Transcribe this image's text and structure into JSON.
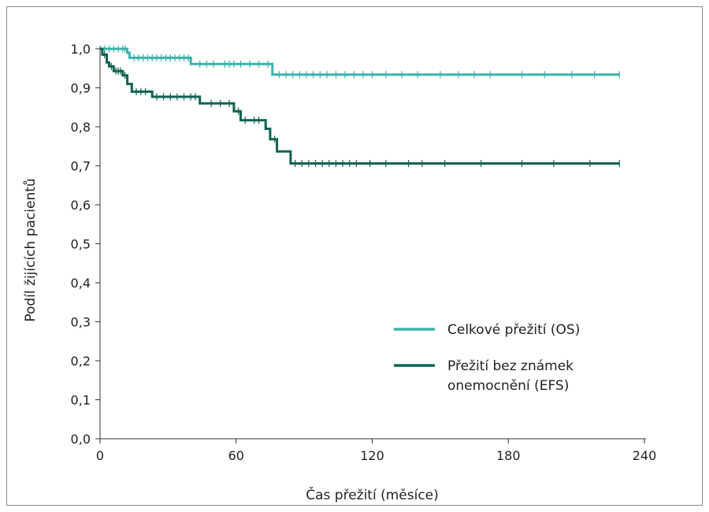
{
  "chart_data": {
    "type": "line",
    "xlabel": "Čas přežití (měsíce)",
    "ylabel": "Podíl žijících pacientů",
    "xlim": [
      0,
      240
    ],
    "ylim": [
      0,
      1
    ],
    "x_ticks": [
      0,
      60,
      120,
      180,
      240
    ],
    "x_tick_labels": [
      "0",
      "60",
      "120",
      "180",
      "240"
    ],
    "y_ticks": [
      0,
      0.1,
      0.2,
      0.3,
      0.4,
      0.5,
      0.6,
      0.7,
      0.8,
      0.9,
      1.0
    ],
    "y_tick_labels": [
      "0,0",
      "0,1",
      "0,2",
      "0,3",
      "0,4",
      "0,5",
      "0,6",
      "0,7",
      "0,8",
      "0,9",
      "1,0"
    ],
    "grid": false,
    "legend_position": "bottom-right",
    "series": [
      {
        "name": "Celkové přežití (OS)",
        "color": "#3ab3ad",
        "step_points": [
          [
            0,
            1.0
          ],
          [
            12,
            1.0
          ],
          [
            12,
            0.99
          ],
          [
            13,
            0.99
          ],
          [
            13,
            0.977
          ],
          [
            40,
            0.977
          ],
          [
            40,
            0.961
          ],
          [
            76,
            0.961
          ],
          [
            76,
            0.934
          ],
          [
            229,
            0.934
          ]
        ],
        "censor_x": [
          2,
          4,
          6,
          8,
          10,
          11,
          15,
          17,
          19,
          21,
          23,
          25,
          27,
          29,
          31,
          33,
          35,
          37,
          39,
          44,
          47,
          50,
          55,
          57,
          59,
          62,
          66,
          70,
          74,
          79,
          82,
          85,
          88,
          91,
          94,
          97,
          100,
          104,
          108,
          112,
          116,
          120,
          126,
          133,
          140,
          150,
          158,
          165,
          172,
          186,
          196,
          208,
          218,
          229
        ]
      },
      {
        "name": "Přežití bez známek onemocnění (EFS)",
        "color": "#0f6352",
        "step_points": [
          [
            0,
            1.0
          ],
          [
            1,
            1.0
          ],
          [
            1,
            0.985
          ],
          [
            3,
            0.985
          ],
          [
            3,
            0.965
          ],
          [
            4,
            0.965
          ],
          [
            4,
            0.955
          ],
          [
            6,
            0.955
          ],
          [
            6,
            0.943
          ],
          [
            10,
            0.943
          ],
          [
            10,
            0.932
          ],
          [
            12,
            0.932
          ],
          [
            12,
            0.91
          ],
          [
            14,
            0.91
          ],
          [
            14,
            0.89
          ],
          [
            23,
            0.89
          ],
          [
            23,
            0.877
          ],
          [
            44,
            0.877
          ],
          [
            44,
            0.86
          ],
          [
            59,
            0.86
          ],
          [
            59,
            0.84
          ],
          [
            62,
            0.84
          ],
          [
            62,
            0.817
          ],
          [
            73,
            0.817
          ],
          [
            73,
            0.795
          ],
          [
            75,
            0.795
          ],
          [
            75,
            0.768
          ],
          [
            78,
            0.768
          ],
          [
            78,
            0.737
          ],
          [
            84,
            0.737
          ],
          [
            84,
            0.706
          ],
          [
            229,
            0.706
          ]
        ],
        "censor_x": [
          2,
          5,
          7,
          8,
          9,
          11,
          16,
          18,
          20,
          25,
          28,
          31,
          34,
          37,
          40,
          42,
          49,
          53,
          57,
          61,
          64,
          68,
          70,
          77,
          86,
          89,
          92,
          95,
          98,
          101,
          104,
          107,
          110,
          113,
          119,
          126,
          136,
          142,
          152,
          168,
          186,
          200,
          216,
          229
        ]
      }
    ]
  },
  "legend": {
    "items": [
      {
        "lines": [
          "Celkové přežití (OS)"
        ],
        "color": "#3ab3ad"
      },
      {
        "lines": [
          "Přežití bez známek",
          "onemocnění (EFS)"
        ],
        "color": "#0f6352"
      }
    ]
  }
}
